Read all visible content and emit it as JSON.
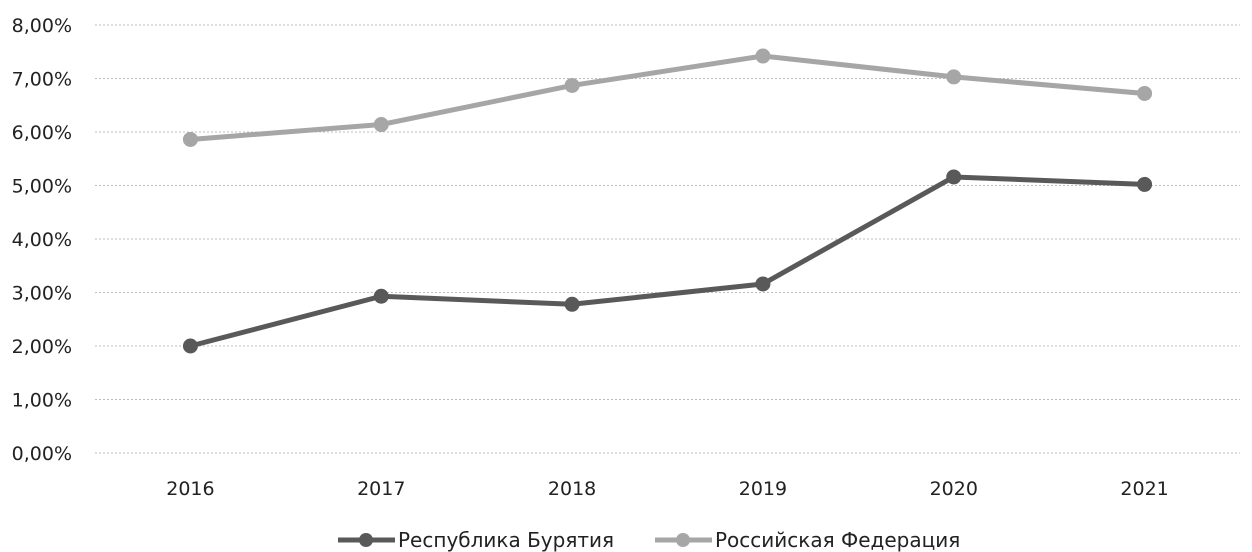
{
  "chart_data": {
    "type": "line",
    "categories": [
      "2016",
      "2017",
      "2018",
      "2019",
      "2020",
      "2021"
    ],
    "series": [
      {
        "name": "Республика Бурятия",
        "values": [
          0.02,
          0.0293,
          0.0278,
          0.0316,
          0.0516,
          0.0502
        ],
        "color": "#595959"
      },
      {
        "name": "Российская Федерация",
        "values": [
          0.0586,
          0.0614,
          0.0687,
          0.0742,
          0.0703,
          0.0672
        ],
        "color": "#a6a6a6"
      }
    ],
    "yticks": [
      "0,00%",
      "1,00%",
      "2,00%",
      "3,00%",
      "4,00%",
      "5,00%",
      "6,00%",
      "7,00%",
      "8,00%"
    ],
    "ylim": [
      0,
      0.08
    ],
    "grid": true,
    "legend_position": "bottom"
  }
}
